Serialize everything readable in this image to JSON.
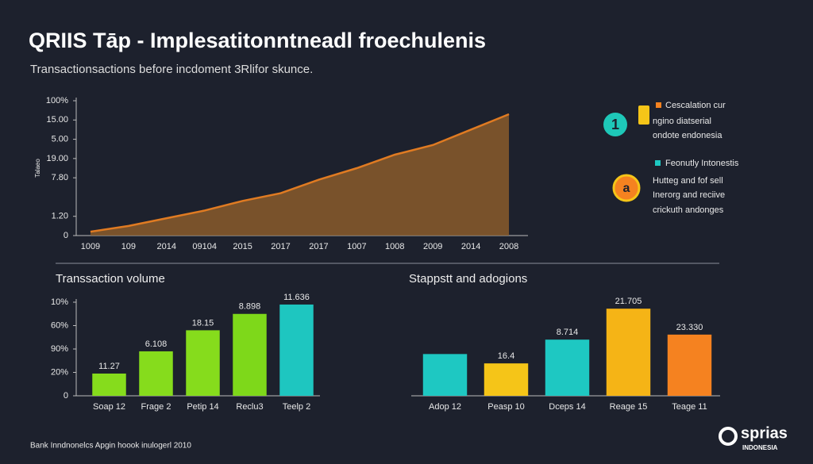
{
  "header": {
    "title": "QRIIS Tāp - Implesatitonntneadl froechulenis",
    "subtitle": "Transactionsactions before incdoment 3Rlifor skunce."
  },
  "chart_data": [
    {
      "type": "area",
      "y_label": "Talaeo",
      "color": "#e07b22",
      "fill": "#8a5a2c",
      "categories": [
        "1009",
        "109",
        "2014",
        "09104",
        "2015",
        "2017",
        "2017",
        "1007",
        "1008",
        "2009",
        "2014",
        "2008"
      ],
      "values": [
        0.2,
        0.5,
        0.9,
        1.3,
        1.8,
        2.2,
        2.9,
        3.5,
        4.2,
        4.7,
        5.5,
        6.3
      ],
      "ylim": [
        0,
        7
      ],
      "yticks": [
        0,
        {
          "value": 1,
          "label": "1.20"
        },
        {
          "value": 3,
          "label": "7.80"
        },
        {
          "value": 4,
          "label": "19.00"
        },
        {
          "value": 5,
          "label": "5.00"
        },
        {
          "value": 6,
          "label": "15.00"
        },
        {
          "value": 7,
          "label": "100%"
        }
      ]
    },
    {
      "type": "bar",
      "title": "Transsaction volume",
      "categories": [
        "Soap 12",
        "Frage 2",
        "Petip 14",
        "Reclu3",
        "Teelp 2"
      ],
      "values": [
        0.95,
        1.9,
        2.8,
        3.5,
        3.9
      ],
      "annotations": [
        "11.27",
        "6.108",
        "18.15",
        "8.898",
        "11.636"
      ],
      "colors": [
        "#86dc1c",
        "#86dc1c",
        "#86dc1c",
        "#7ed81a",
        "#1ec6c0"
      ],
      "ylim": [
        0,
        4
      ],
      "yticks": [
        0,
        {
          "value": 1,
          "label": "20%"
        },
        {
          "value": 2,
          "label": "90%"
        },
        {
          "value": 3,
          "label": "60%"
        },
        {
          "value": 4,
          "label": "10%"
        }
      ]
    },
    {
      "type": "bar",
      "title": "Stappstt and adogions",
      "categories": [
        "Adop 12",
        "Peasp 10",
        "Dceps 14",
        "Reage 15",
        "Teage 11"
      ],
      "values": [
        58,
        45,
        78,
        121,
        85
      ],
      "annotations": [
        null,
        "16.4",
        "8.714",
        "21.705",
        "23.330"
      ],
      "colors": [
        "#1ec8c2",
        "#f5c518",
        "#1ec8c2",
        "#f5b416",
        "#f58220"
      ],
      "ylim": [
        0,
        130
      ]
    }
  ],
  "side_notes": [
    {
      "badge": "1",
      "lines": [
        "Cescalation cur",
        "ngino diatserial",
        "ondote endonesia"
      ]
    },
    {
      "lines": [
        "Feonutly Intonestis"
      ]
    },
    {
      "badge": "a",
      "lines": [
        "Hutteg and fof sell",
        "Inerorg and reciive",
        "crickuth andonges"
      ]
    }
  ],
  "footer": "Bank Inndnonelcs Apgin hoook inulogerl 2010",
  "logo": {
    "name": "sprias",
    "tagline": "INDONESIA"
  }
}
